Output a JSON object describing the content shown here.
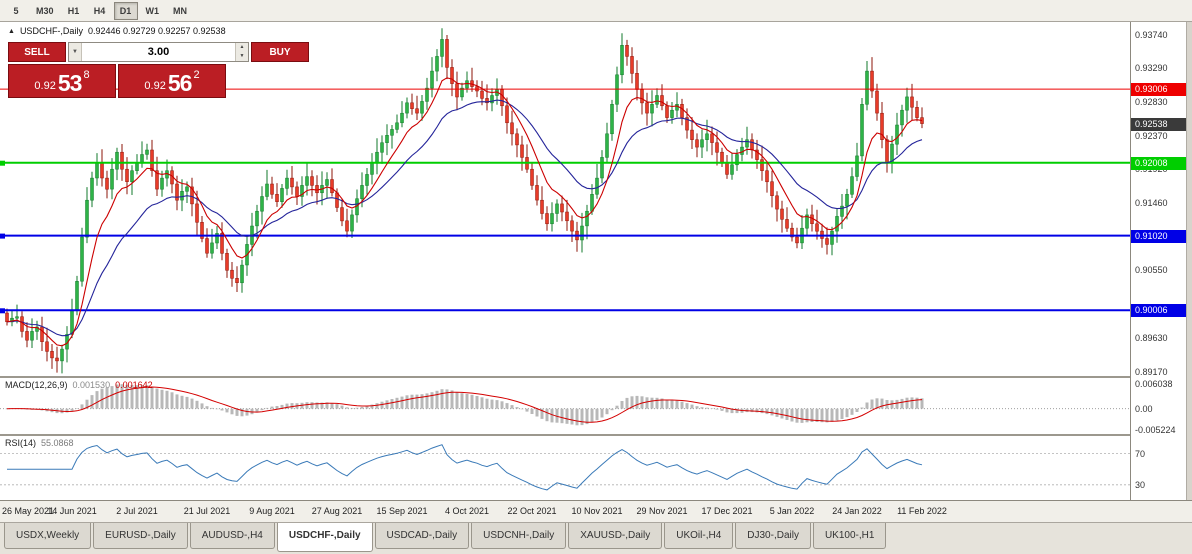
{
  "icons": {
    "panel_toggle": "▲",
    "volume_dropdown": "▼",
    "spinner_up": "▲",
    "spinner_down": "▼"
  },
  "colors": {
    "up_candle": "#2eb347",
    "up_border": "#127a2b",
    "down_candle": "#e83b28",
    "down_border": "#8e1408",
    "ma_fast": "#cc0000",
    "ma_slow": "#24249a",
    "level_red": "#ee0000",
    "level_green": "#00ce00",
    "level_blue": "#0000e6",
    "macd_hist": "#b8b8b8",
    "macd_signal": "#d40000",
    "rsi_line": "#3a7ab8",
    "trade_red": "#bb1e24",
    "current_badge": "#3a3a3a"
  },
  "toolbar": {
    "timeframes": [
      "5",
      "M30",
      "H1",
      "H4",
      "D1",
      "W1",
      "MN"
    ],
    "active": "D1"
  },
  "chart": {
    "symbol_title": "USDCHF-,Daily",
    "ohlc_text": "0.92446 0.92729 0.92257 0.92538"
  },
  "trade": {
    "sell_label": "SELL",
    "buy_label": "BUY",
    "volume": "3.00",
    "sell_price": {
      "prefix": "0.92",
      "big": "53",
      "sup": "8"
    },
    "buy_price": {
      "prefix": "0.92",
      "big": "56",
      "sup": "2"
    }
  },
  "price_axis": {
    "scale_labels": [
      "0.93740",
      "0.93290",
      "0.92830",
      "0.92370",
      "0.91920",
      "0.91460",
      "0.90550",
      "0.89630",
      "0.89170"
    ],
    "line_badges": [
      {
        "text": "0.93006",
        "color": "#ee0000"
      },
      {
        "text": "0.92008",
        "color": "#00ce00"
      },
      {
        "text": "0.91020",
        "color": "#0000e6"
      },
      {
        "text": "0.90006",
        "color": "#0000e6"
      }
    ],
    "current_badge": {
      "text": "0.92538",
      "color": "#3a3a3a"
    }
  },
  "indicators": {
    "macd": {
      "name": "MACD(12,26,9)",
      "value_main": "0.001530",
      "value_signal": "0.001642",
      "axis_labels": [
        "0.006038",
        "0.00",
        "-0.005224"
      ],
      "axis_values": [
        0.006038,
        0,
        -0.005224
      ]
    },
    "rsi": {
      "name": "RSI(14)",
      "value": "55.0868",
      "level_labels": [
        "70",
        "30"
      ],
      "level_values": [
        70,
        30
      ]
    }
  },
  "date_axis": [
    {
      "t": "26 May 2021",
      "i": 0
    },
    {
      "t": "14 Jun 2021",
      "i": 13
    },
    {
      "t": "2 Jul 2021",
      "i": 26
    },
    {
      "t": "21 Jul 2021",
      "i": 40
    },
    {
      "t": "9 Aug 2021",
      "i": 53
    },
    {
      "t": "27 Aug 2021",
      "i": 66
    },
    {
      "t": "15 Sep 2021",
      "i": 79
    },
    {
      "t": "4 Oct 2021",
      "i": 92
    },
    {
      "t": "22 Oct 2021",
      "i": 105
    },
    {
      "t": "10 Nov 2021",
      "i": 118
    },
    {
      "t": "29 Nov 2021",
      "i": 131
    },
    {
      "t": "17 Dec 2021",
      "i": 144
    },
    {
      "t": "5 Jan 2022",
      "i": 157
    },
    {
      "t": "24 Jan 2022",
      "i": 170
    },
    {
      "t": "11 Feb 2022",
      "i": 183
    }
  ],
  "tabs": {
    "items": [
      "USDX,Weekly",
      "EURUSD-,Daily",
      "AUDUSD-,H4",
      "USDCHF-,Daily",
      "USDCAD-,Daily",
      "USDCNH-,Daily",
      "XAUUSD-,Daily",
      "UKOil-,H4",
      "DJ30-,Daily",
      "UK100-,H1"
    ],
    "active": "USDCHF-,Daily"
  },
  "chart_data": {
    "type": "candlestick",
    "symbol": "USDCHF",
    "timeframe": "Daily",
    "current_ohlc": {
      "open": 0.92446,
      "high": 0.92729,
      "low": 0.92257,
      "close": 0.92538
    },
    "y_axis_range": [
      0.8917,
      0.9374
    ],
    "levels": [
      {
        "price": 0.93006,
        "color_key": "level_red",
        "width": 1
      },
      {
        "price": 0.92008,
        "color_key": "level_green",
        "width": 2
      },
      {
        "price": 0.9102,
        "color_key": "level_blue",
        "width": 2
      },
      {
        "price": 0.90006,
        "color_key": "level_blue",
        "width": 2
      }
    ],
    "moving_averages": [
      {
        "period": 8,
        "color_key": "ma_fast"
      },
      {
        "period": 20,
        "color_key": "ma_slow"
      }
    ],
    "macd_params": [
      12,
      26,
      9
    ],
    "rsi_period": 14,
    "closes": [
      0.8985,
      0.899,
      0.8992,
      0.8972,
      0.896,
      0.8972,
      0.8978,
      0.8958,
      0.8945,
      0.8936,
      0.8932,
      0.8948,
      0.8968,
      0.9,
      0.904,
      0.91,
      0.915,
      0.918,
      0.92,
      0.918,
      0.9165,
      0.9192,
      0.9215,
      0.9192,
      0.9175,
      0.919,
      0.92,
      0.9212,
      0.9218,
      0.919,
      0.9165,
      0.918,
      0.919,
      0.9172,
      0.915,
      0.9162,
      0.9168,
      0.9145,
      0.912,
      0.9098,
      0.9078,
      0.9092,
      0.9105,
      0.9078,
      0.9055,
      0.9044,
      0.9038,
      0.9062,
      0.909,
      0.9115,
      0.9135,
      0.9155,
      0.9172,
      0.9158,
      0.9148,
      0.9166,
      0.918,
      0.9168,
      0.9155,
      0.917,
      0.9182,
      0.917,
      0.916,
      0.917,
      0.9178,
      0.916,
      0.914,
      0.9122,
      0.9108,
      0.913,
      0.9152,
      0.917,
      0.9185,
      0.92,
      0.9215,
      0.9228,
      0.9238,
      0.9246,
      0.9255,
      0.9268,
      0.9282,
      0.9274,
      0.9268,
      0.9284,
      0.9302,
      0.9325,
      0.9345,
      0.9368,
      0.933,
      0.9308,
      0.929,
      0.9302,
      0.9312,
      0.9304,
      0.9298,
      0.9288,
      0.9282,
      0.9292,
      0.93,
      0.9278,
      0.9255,
      0.924,
      0.9225,
      0.9208,
      0.9192,
      0.917,
      0.915,
      0.9132,
      0.9118,
      0.9132,
      0.9145,
      0.9134,
      0.9122,
      0.9108,
      0.9096,
      0.9115,
      0.9135,
      0.9158,
      0.918,
      0.9208,
      0.924,
      0.928,
      0.932,
      0.936,
      0.9345,
      0.9322,
      0.93,
      0.9282,
      0.9268,
      0.928,
      0.9292,
      0.9278,
      0.9262,
      0.9272,
      0.928,
      0.9262,
      0.9245,
      0.9232,
      0.9222,
      0.9232,
      0.924,
      0.9228,
      0.9215,
      0.92,
      0.9185,
      0.9198,
      0.9212,
      0.9222,
      0.9232,
      0.9218,
      0.9205,
      0.919,
      0.9175,
      0.9156,
      0.9138,
      0.9124,
      0.9112,
      0.91,
      0.9092,
      0.9112,
      0.913,
      0.9118,
      0.9108,
      0.9098,
      0.909,
      0.9108,
      0.9128,
      0.9142,
      0.9158,
      0.9182,
      0.921,
      0.928,
      0.9325,
      0.9298,
      0.9268,
      0.9232,
      0.92,
      0.9226,
      0.9252,
      0.9272,
      0.929,
      0.9276,
      0.9262,
      0.92538
    ]
  }
}
